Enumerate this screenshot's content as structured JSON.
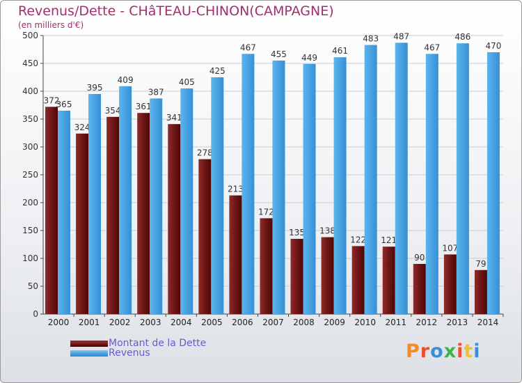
{
  "header": {
    "title": "Revenus/Dette - CHâTEAU-CHINON(CAMPAGNE)",
    "subtitle": "(en milliers d'€)"
  },
  "colors": {
    "dette": "#7a1c1c",
    "revenus": "#4aa3e3",
    "title": "#a0306a",
    "legend_text": "#6a5acd"
  },
  "legend": {
    "dette_label": "Montant de la Dette",
    "revenus_label": "Revenus"
  },
  "logo": {
    "text": "Proxiti",
    "letter_colors": [
      "#f28c28",
      "#e8502f",
      "#3a8fd6",
      "#3cb44b",
      "#e8502f",
      "#f2c12e",
      "#3a8fd6"
    ]
  },
  "chart_data": {
    "type": "bar",
    "categories": [
      "2000",
      "2001",
      "2002",
      "2003",
      "2004",
      "2005",
      "2006",
      "2007",
      "2008",
      "2009",
      "2010",
      "2011",
      "2012",
      "2013",
      "2014"
    ],
    "series": [
      {
        "name": "Montant de la Dette",
        "values": [
          372,
          324,
          354,
          361,
          341,
          278,
          213,
          172,
          135,
          138,
          122,
          121,
          90,
          107,
          79
        ]
      },
      {
        "name": "Revenus",
        "values": [
          365,
          395,
          409,
          387,
          405,
          425,
          467,
          455,
          449,
          461,
          483,
          487,
          467,
          486,
          470
        ]
      }
    ],
    "title": "Revenus/Dette - CHâTEAU-CHINON(CAMPAGNE)",
    "ylabel": "(en milliers d'€)",
    "ylim": [
      0,
      500
    ],
    "yticks": [
      0,
      50,
      100,
      150,
      200,
      250,
      300,
      350,
      400,
      450,
      500
    ],
    "grid": true,
    "legend_position": "bottom-left"
  }
}
